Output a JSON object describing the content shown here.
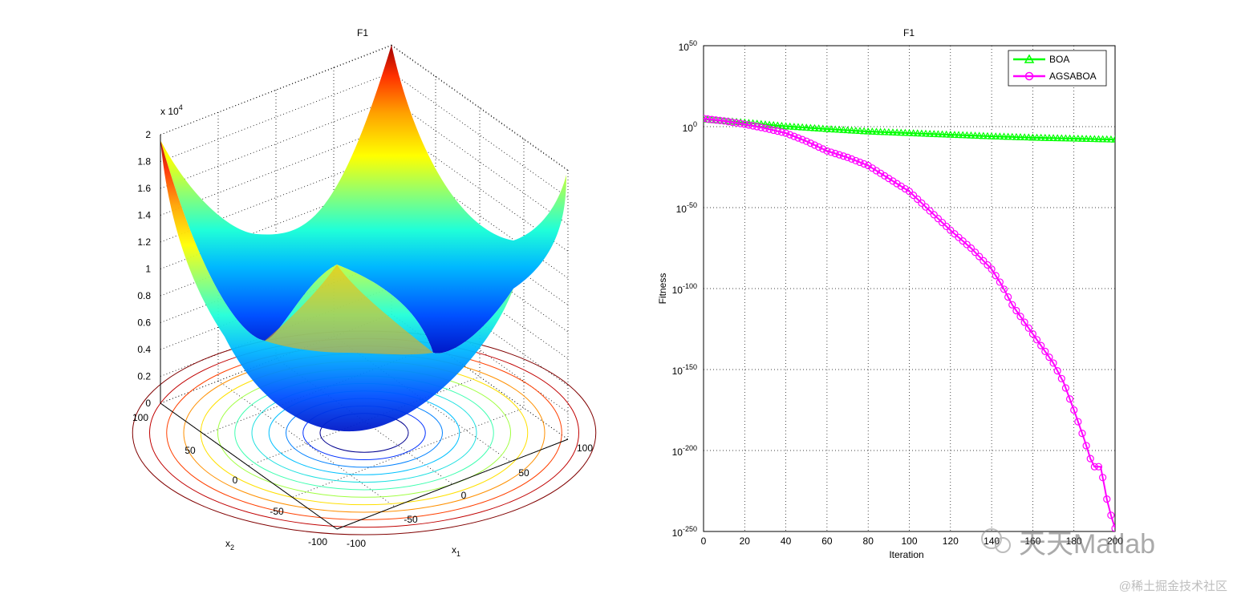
{
  "chart_data": [
    {
      "type": "surface",
      "title": "F1",
      "xlabel": "x",
      "xlabel_sub": "1",
      "ylabel": "x",
      "ylabel_sub": "2",
      "zlabel": "",
      "function": "sphere z = x1^2 + x2^2",
      "x_ticks": [
        "-100",
        "-50",
        "0",
        "50",
        "100"
      ],
      "y_ticks": [
        "-100",
        "-50",
        "0",
        "50",
        "100"
      ],
      "z_ticks": [
        "0",
        "0.2",
        "0.4",
        "0.6",
        "0.8",
        "1",
        "1.2",
        "1.4",
        "1.6",
        "1.8",
        "2"
      ],
      "z_exponent_base": "x 10",
      "z_exponent_power": "4",
      "xlim": [
        -100,
        100
      ],
      "ylim": [
        -100,
        100
      ],
      "zlim": [
        0,
        20000
      ],
      "colormap": "jet",
      "grid": true,
      "contour_projection": true
    },
    {
      "type": "line",
      "title": "F1",
      "xlabel": "Iteration",
      "ylabel": "Fitness",
      "yscale": "log",
      "xlim": [
        0,
        200
      ],
      "ylim_exponent": [
        -250,
        50
      ],
      "x_ticks": [
        "0",
        "20",
        "40",
        "60",
        "80",
        "100",
        "120",
        "140",
        "160",
        "180",
        "200"
      ],
      "y_tick_base": "10",
      "y_tick_exponents": [
        "50",
        "0",
        "-50",
        "-100",
        "-150",
        "-200",
        "-250"
      ],
      "grid": true,
      "legend_position": "top-right",
      "series": [
        {
          "name": "BOA",
          "color": "#00ff00",
          "marker": "triangle",
          "x": [
            0,
            20,
            40,
            60,
            80,
            100,
            120,
            140,
            160,
            180,
            200
          ],
          "log10_y": [
            4.5,
            2.5,
            0.2,
            -1.5,
            -3,
            -4,
            -5,
            -6,
            -6.8,
            -7.4,
            -8
          ]
        },
        {
          "name": "AGSABOA",
          "color": "#ff00ff",
          "marker": "circle",
          "x": [
            0,
            10,
            20,
            30,
            40,
            50,
            60,
            70,
            80,
            90,
            100,
            110,
            120,
            130,
            140,
            145,
            150,
            160,
            170,
            175,
            180,
            185,
            188,
            190,
            193,
            196,
            198,
            200
          ],
          "log10_y": [
            5,
            3.5,
            1.5,
            -1,
            -4,
            -9,
            -15,
            -19,
            -24,
            -32,
            -40,
            -52,
            -64,
            -75,
            -88,
            -98,
            -110,
            -128,
            -146,
            -158,
            -175,
            -193,
            -205,
            -210,
            -210,
            -230,
            -240,
            -248
          ]
        }
      ]
    }
  ],
  "watermark": {
    "name": "天天Matlab",
    "site": "@稀土掘金技术社区"
  }
}
